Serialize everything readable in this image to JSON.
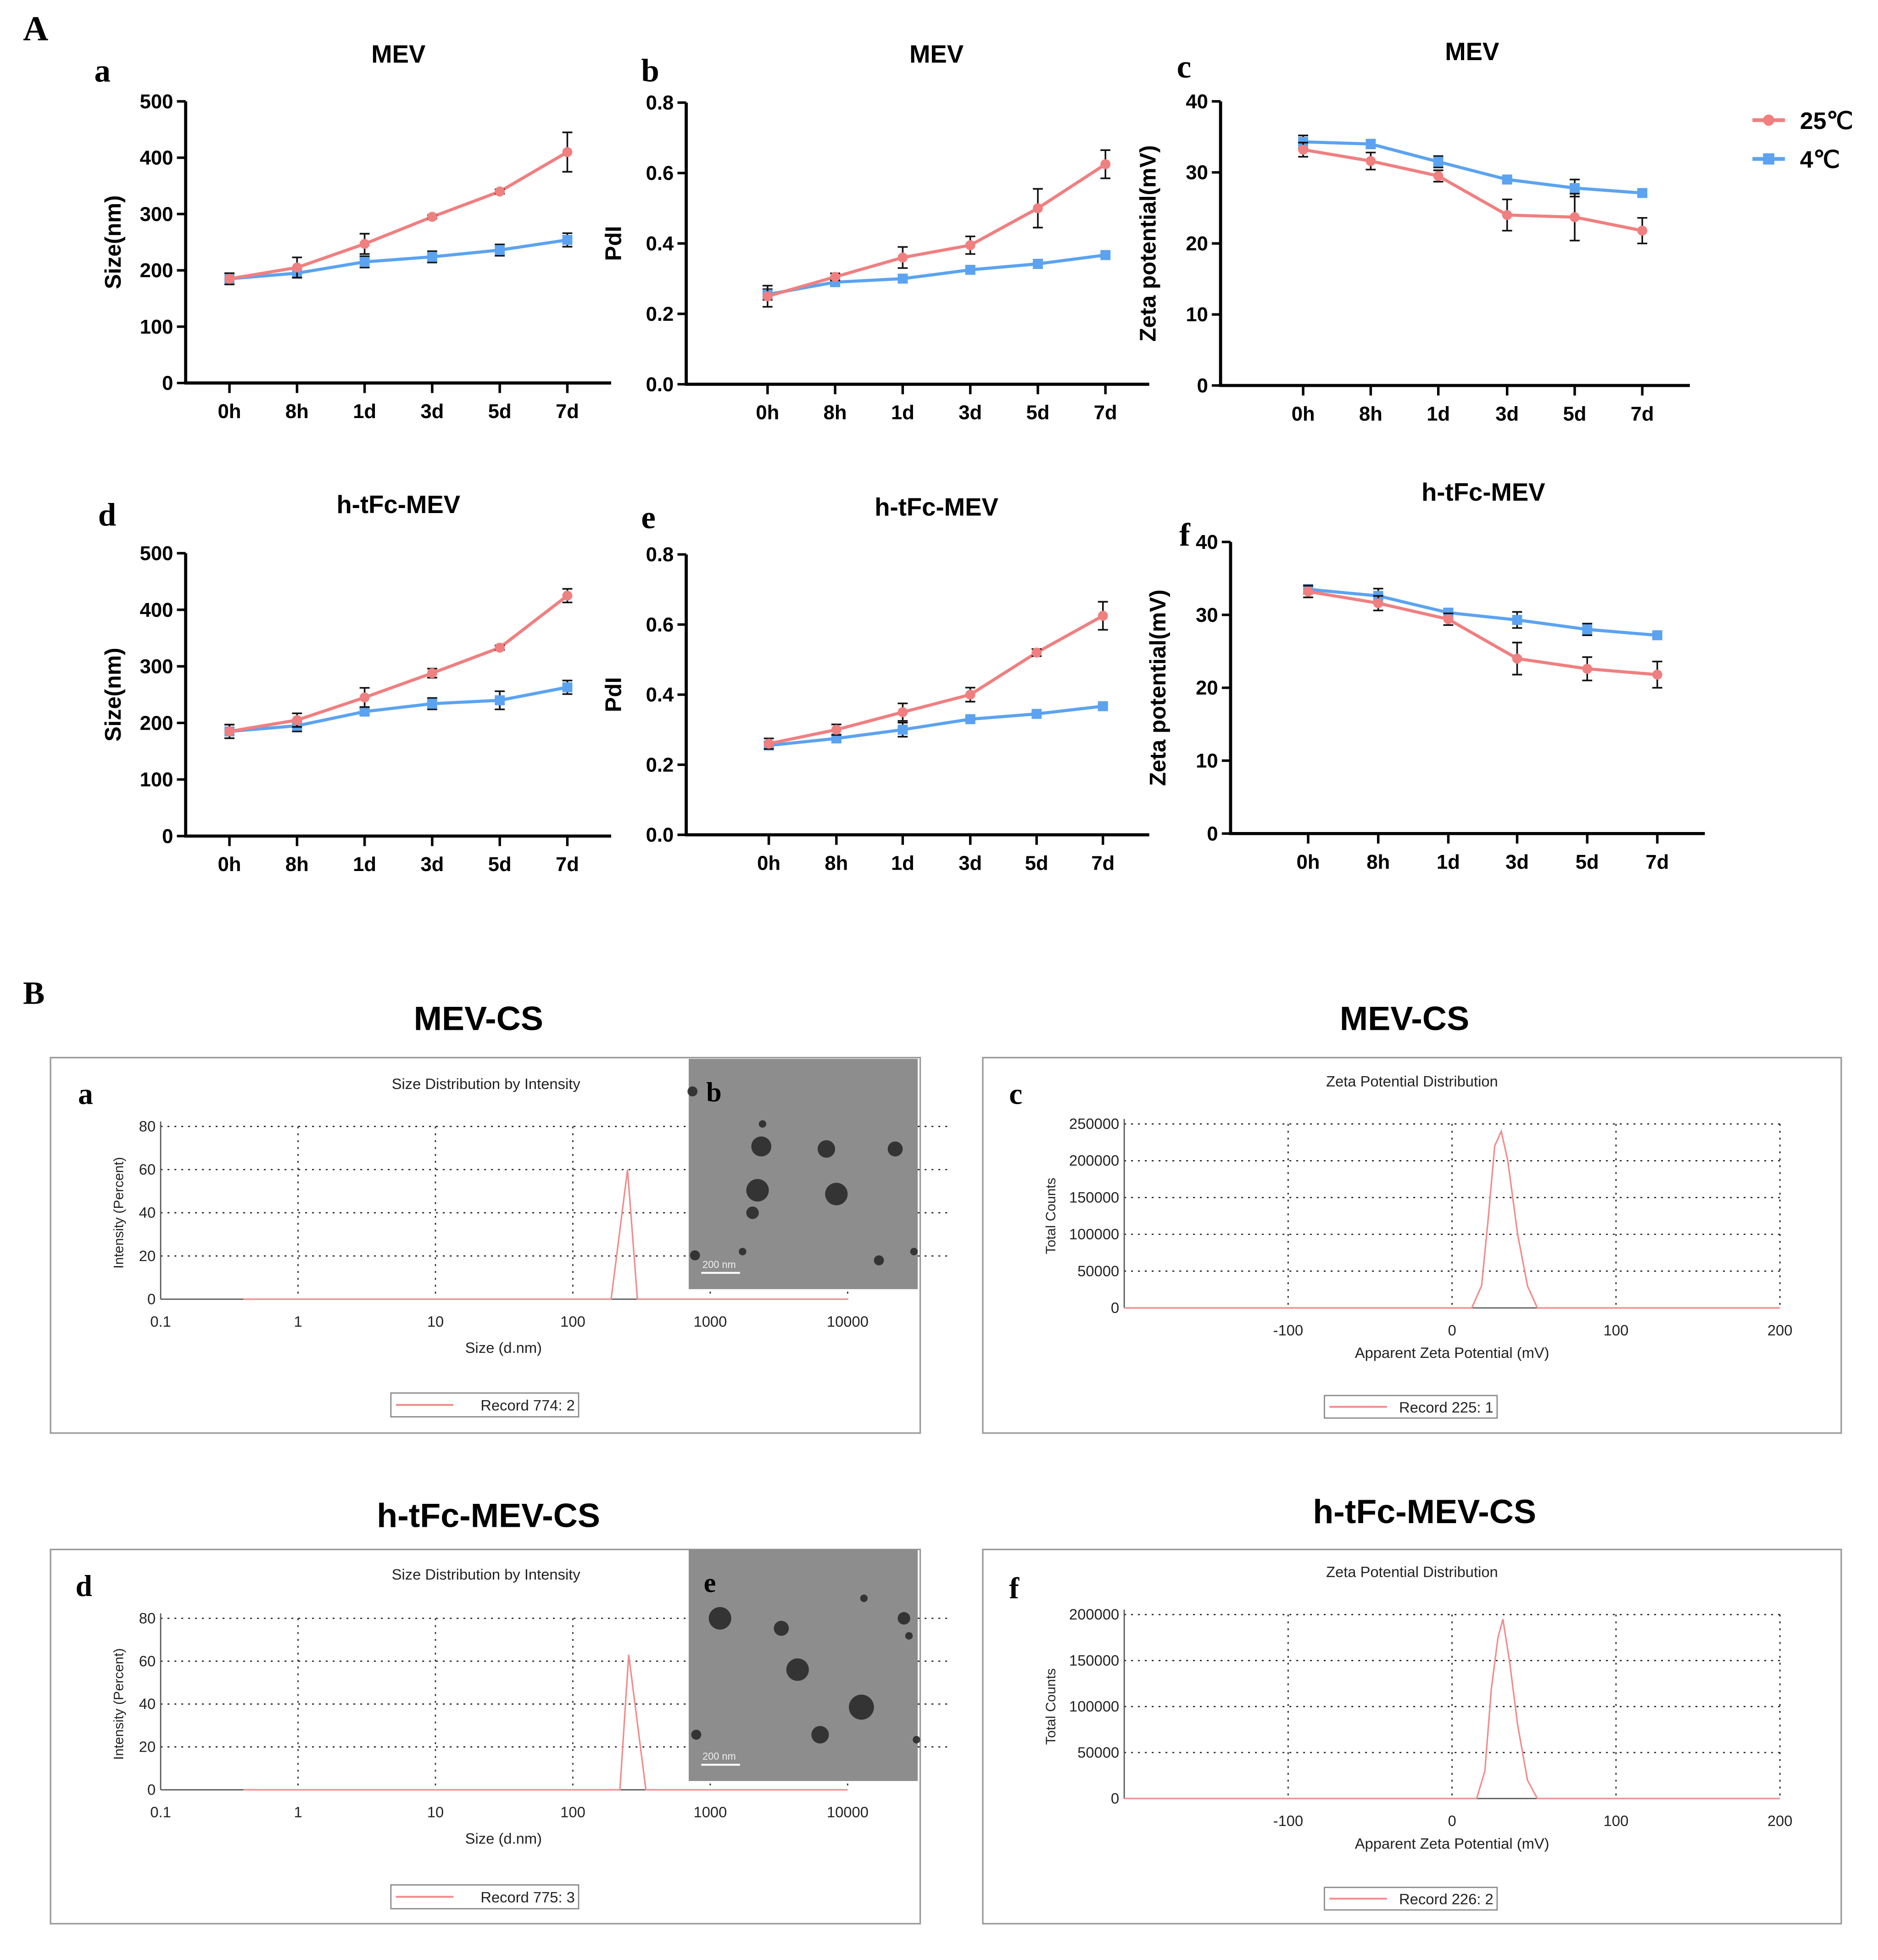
{
  "figure": {
    "section_a_label": "A",
    "section_b_label": "B"
  },
  "legend": {
    "placement": "top-right",
    "series": [
      {
        "name": "25℃",
        "color": "#f07f80",
        "marker": "circle"
      },
      {
        "name": "4℃",
        "color": "#5ba3f0",
        "marker": "square"
      }
    ]
  },
  "chart_data": [
    {
      "panel": "a",
      "type": "line",
      "title": "MEV",
      "xlabel": "",
      "ylabel": "Size(nm)",
      "categories": [
        "0h",
        "8h",
        "1d",
        "3d",
        "5d",
        "7d"
      ],
      "ylim": [
        0,
        500
      ],
      "yticks": [
        0,
        100,
        200,
        300,
        400,
        500
      ],
      "ytick_labels": [
        "0",
        "100",
        "200",
        "300",
        "400",
        "500"
      ],
      "series": [
        {
          "name": "25℃",
          "values": [
            185,
            205,
            247,
            295,
            340,
            410
          ],
          "errors": [
            10,
            18,
            18,
            3,
            4,
            35
          ]
        },
        {
          "name": "4℃",
          "values": [
            185,
            195,
            215,
            224,
            236,
            254
          ],
          "errors": [
            10,
            8,
            10,
            10,
            10,
            12
          ]
        }
      ]
    },
    {
      "panel": "b",
      "type": "line",
      "title": "MEV",
      "xlabel": "",
      "ylabel": "PdI",
      "categories": [
        "0h",
        "8h",
        "1d",
        "3d",
        "5d",
        "7d"
      ],
      "ylim": [
        0,
        0.8
      ],
      "yticks": [
        0,
        0.2,
        0.4,
        0.6,
        0.8
      ],
      "ytick_labels": [
        "0.0",
        "0.2",
        "0.4",
        "0.6",
        "0.8"
      ],
      "series": [
        {
          "name": "25℃",
          "values": [
            0.25,
            0.305,
            0.36,
            0.395,
            0.5,
            0.625
          ],
          "errors": [
            0.03,
            0.01,
            0.03,
            0.025,
            0.055,
            0.04
          ]
        },
        {
          "name": "4℃",
          "values": [
            0.255,
            0.29,
            0.3,
            0.325,
            0.342,
            0.367
          ],
          "errors": [
            0.015,
            0.01,
            0.01,
            0.01,
            0.012,
            0.005
          ]
        }
      ]
    },
    {
      "panel": "c",
      "type": "line",
      "title": "MEV",
      "xlabel": "",
      "ylabel": "Zeta potential(mV)",
      "categories": [
        "0h",
        "8h",
        "1d",
        "3d",
        "5d",
        "7d"
      ],
      "ylim": [
        0,
        40
      ],
      "yticks": [
        0,
        10,
        20,
        30,
        40
      ],
      "ytick_labels": [
        "0",
        "10",
        "20",
        "30",
        "40"
      ],
      "series": [
        {
          "name": "25℃",
          "values": [
            33.2,
            31.6,
            29.5,
            24.0,
            23.7,
            21.8
          ],
          "errors": [
            1.0,
            1.2,
            0.8,
            2.2,
            3.3,
            1.8
          ]
        },
        {
          "name": "4℃",
          "values": [
            34.3,
            34.0,
            31.5,
            29.0,
            27.8,
            27.1
          ],
          "errors": [
            0.9,
            0.6,
            0.8,
            0.3,
            1.2,
            0.4
          ]
        }
      ]
    },
    {
      "panel": "d",
      "type": "line",
      "title": "h-tFc-MEV",
      "xlabel": "",
      "ylabel": "Size(nm)",
      "categories": [
        "0h",
        "8h",
        "1d",
        "3d",
        "5d",
        "7d"
      ],
      "ylim": [
        0,
        500
      ],
      "yticks": [
        0,
        100,
        200,
        300,
        400,
        500
      ],
      "ytick_labels": [
        "0",
        "100",
        "200",
        "300",
        "400",
        "500"
      ],
      "series": [
        {
          "name": "25℃",
          "values": [
            185,
            205,
            245,
            288,
            333,
            425
          ],
          "errors": [
            12,
            12,
            17,
            8,
            4,
            12
          ]
        },
        {
          "name": "4℃",
          "values": [
            185,
            195,
            220,
            234,
            240,
            263
          ],
          "errors": [
            12,
            10,
            6,
            10,
            16,
            12
          ]
        }
      ]
    },
    {
      "panel": "e",
      "type": "line",
      "title": "h-tFc-MEV",
      "xlabel": "",
      "ylabel": "PdI",
      "categories": [
        "0h",
        "8h",
        "1d",
        "3d",
        "5d",
        "7d"
      ],
      "ylim": [
        0,
        0.8
      ],
      "yticks": [
        0,
        0.2,
        0.4,
        0.6,
        0.8
      ],
      "ytick_labels": [
        "0.0",
        "0.2",
        "0.4",
        "0.6",
        "0.8"
      ],
      "series": [
        {
          "name": "25℃",
          "values": [
            0.26,
            0.3,
            0.35,
            0.4,
            0.52,
            0.625
          ],
          "errors": [
            0.015,
            0.015,
            0.025,
            0.02,
            0.01,
            0.04
          ]
        },
        {
          "name": "4℃",
          "values": [
            0.255,
            0.275,
            0.3,
            0.33,
            0.345,
            0.367
          ],
          "errors": [
            0.01,
            0.01,
            0.02,
            0.005,
            0.005,
            0.005
          ]
        }
      ]
    },
    {
      "panel": "f",
      "type": "line",
      "title": "h-tFc-MEV",
      "xlabel": "",
      "ylabel": "Zeta potential(mV)",
      "categories": [
        "0h",
        "8h",
        "1d",
        "3d",
        "5d",
        "7d"
      ],
      "ylim": [
        0,
        40
      ],
      "yticks": [
        0,
        10,
        20,
        30,
        40
      ],
      "ytick_labels": [
        "0",
        "10",
        "20",
        "30",
        "40"
      ],
      "series": [
        {
          "name": "25℃",
          "values": [
            33.2,
            31.6,
            29.4,
            24.0,
            22.6,
            21.8
          ],
          "errors": [
            0.8,
            1.0,
            0.8,
            2.2,
            1.6,
            1.8
          ]
        },
        {
          "name": "4℃",
          "values": [
            33.5,
            32.6,
            30.3,
            29.3,
            28.0,
            27.2
          ],
          "errors": [
            0.6,
            1.0,
            0.5,
            1.1,
            0.8,
            0.3
          ]
        }
      ]
    },
    {
      "panel": "a",
      "group_title": "MEV-CS",
      "type": "line",
      "title": "Size Distribution by Intensity",
      "xlabel": "Size (d.nm)",
      "ylabel": "Intensity (Percent)",
      "xscale": "log",
      "xlim": [
        0.1,
        10000
      ],
      "xticks": [
        0.1,
        1,
        10,
        100,
        1000,
        10000
      ],
      "xtick_labels": [
        "0.1",
        "1",
        "10",
        "100",
        "1000",
        "10000"
      ],
      "ylim": [
        0,
        80
      ],
      "yticks": [
        0,
        20,
        40,
        60,
        80
      ],
      "ytick_labels": [
        "0",
        "20",
        "40",
        "60",
        "80"
      ],
      "grid": true,
      "legend": "bottom-center",
      "color": "#f08c8c",
      "series": [
        {
          "name": "Record 774:  2",
          "x": [
            0.4,
            190,
            250,
            295,
            10000
          ],
          "y": [
            0,
            0,
            60,
            0,
            0
          ]
        }
      ]
    },
    {
      "panel": "c",
      "group_title": "MEV-CS",
      "type": "line",
      "title": "Zeta Potential Distribution",
      "xlabel": "Apparent Zeta Potential (mV)",
      "ylabel": "Total Counts",
      "xlim": [
        -200,
        200
      ],
      "xticks": [
        -100,
        0,
        100,
        200
      ],
      "xtick_labels": [
        "-100",
        "0",
        "100",
        "200"
      ],
      "ylim": [
        0,
        250000
      ],
      "yticks": [
        0,
        50000,
        100000,
        150000,
        200000,
        250000
      ],
      "ytick_labels": [
        "0",
        "50000",
        "100000",
        "150000",
        "200000",
        "250000"
      ],
      "grid": true,
      "legend": "bottom-center",
      "color": "#f08c8c",
      "series": [
        {
          "name": "Record 225:  1",
          "x": [
            -200,
            12,
            18,
            22,
            26,
            30,
            34,
            40,
            46,
            52,
            200
          ],
          "y": [
            0,
            0,
            30000,
            120000,
            220000,
            240000,
            200000,
            100000,
            30000,
            0,
            0
          ]
        }
      ]
    },
    {
      "panel": "d",
      "group_title": "h-tFc-MEV-CS",
      "type": "line",
      "title": "Size Distribution by Intensity",
      "xlabel": "Size (d.nm)",
      "ylabel": "Intensity (Percent)",
      "xscale": "log",
      "xlim": [
        0.1,
        10000
      ],
      "xticks": [
        0.1,
        1,
        10,
        100,
        1000,
        10000
      ],
      "xtick_labels": [
        "0.1",
        "1",
        "10",
        "100",
        "1000",
        "10000"
      ],
      "ylim": [
        0,
        80
      ],
      "yticks": [
        0,
        20,
        40,
        60,
        80
      ],
      "ytick_labels": [
        "0",
        "20",
        "40",
        "60",
        "80"
      ],
      "grid": true,
      "legend": "bottom-center",
      "color": "#f08c8c",
      "series": [
        {
          "name": "Record 775:  3",
          "x": [
            0.4,
            220,
            255,
            340,
            10000
          ],
          "y": [
            0,
            0,
            63,
            0,
            0
          ]
        }
      ]
    },
    {
      "panel": "f",
      "group_title": "h-tFc-MEV-CS",
      "type": "line",
      "title": "Zeta Potential Distribution",
      "xlabel": "Apparent Zeta Potential (mV)",
      "ylabel": "Total Counts",
      "xlim": [
        -200,
        200
      ],
      "xticks": [
        -100,
        0,
        100,
        200
      ],
      "xtick_labels": [
        "-100",
        "0",
        "100",
        "200"
      ],
      "ylim": [
        0,
        200000
      ],
      "yticks": [
        0,
        50000,
        100000,
        150000,
        200000
      ],
      "ytick_labels": [
        "0",
        "50000",
        "100000",
        "150000",
        "200000"
      ],
      "grid": true,
      "legend": "bottom-center",
      "color": "#f08c8c",
      "series": [
        {
          "name": "Record 226:  2",
          "x": [
            -200,
            15,
            20,
            24,
            28,
            31,
            35,
            40,
            46,
            52,
            200
          ],
          "y": [
            0,
            0,
            30000,
            120000,
            175000,
            195000,
            150000,
            80000,
            20000,
            0,
            0
          ]
        }
      ]
    }
  ],
  "tem_images": [
    {
      "panel": "b",
      "scale_bar": "200 nm"
    },
    {
      "panel": "e",
      "scale_bar": "200 nm"
    }
  ]
}
